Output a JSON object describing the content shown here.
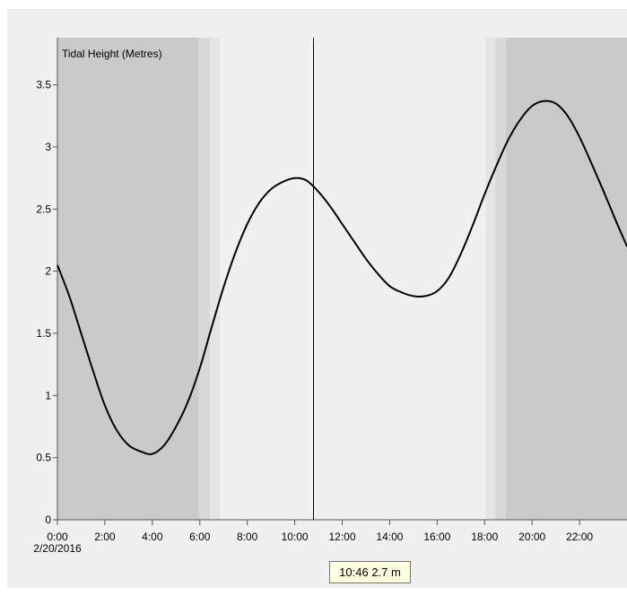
{
  "chart_data": {
    "type": "line",
    "title": "Tidal Height (Metres)",
    "xlabel": "",
    "ylabel": "",
    "date_label": "2/20/2016",
    "xlim": [
      0,
      24
    ],
    "ylim": [
      0,
      3.88
    ],
    "x_ticks": [
      0,
      2,
      4,
      6,
      8,
      10,
      12,
      14,
      16,
      18,
      20,
      22
    ],
    "x_tick_labels": [
      "0:00",
      "2:00",
      "4:00",
      "6:00",
      "8:00",
      "10:00",
      "12:00",
      "14:00",
      "16:00",
      "18:00",
      "20:00",
      "22:00"
    ],
    "y_ticks": [
      0,
      0.5,
      1,
      1.5,
      2,
      2.5,
      3,
      3.5
    ],
    "y_tick_labels": [
      "0",
      "0.5",
      "1",
      "1.5",
      "2",
      "2.5",
      "3",
      "3.5"
    ],
    "grid": false,
    "legend": "none",
    "series": [
      {
        "x": [
          0,
          0.5,
          1,
          1.5,
          2,
          2.5,
          3,
          3.5,
          4,
          4.5,
          5,
          5.5,
          6,
          6.5,
          7,
          7.5,
          8,
          8.5,
          9,
          9.5,
          10,
          10.5,
          11,
          11.5,
          12,
          12.5,
          13,
          13.5,
          14,
          14.5,
          15,
          15.5,
          16,
          16.5,
          17,
          17.5,
          18,
          18.5,
          19,
          19.5,
          20,
          20.5,
          21,
          21.5,
          22,
          22.5,
          23,
          23.5,
          24
        ],
        "values": [
          2.05,
          1.8,
          1.5,
          1.2,
          0.92,
          0.72,
          0.6,
          0.55,
          0.53,
          0.6,
          0.75,
          0.95,
          1.22,
          1.55,
          1.87,
          2.15,
          2.38,
          2.55,
          2.66,
          2.72,
          2.75,
          2.73,
          2.64,
          2.52,
          2.38,
          2.24,
          2.1,
          1.98,
          1.88,
          1.83,
          1.8,
          1.8,
          1.84,
          1.95,
          2.14,
          2.37,
          2.62,
          2.85,
          3.06,
          3.22,
          3.33,
          3.37,
          3.35,
          3.25,
          3.08,
          2.87,
          2.65,
          2.42,
          2.2
        ]
      }
    ],
    "bands": [
      {
        "x0": 0,
        "x1": 5.96,
        "color": "#cacaca"
      },
      {
        "x0": 5.96,
        "x1": 6.43,
        "color": "#d8d8d8"
      },
      {
        "x0": 6.43,
        "x1": 6.85,
        "color": "#e4e4e4"
      },
      {
        "x0": 18.05,
        "x1": 18.45,
        "color": "#e4e4e4"
      },
      {
        "x0": 18.45,
        "x1": 18.9,
        "color": "#d8d8d8"
      },
      {
        "x0": 18.9,
        "x1": 24,
        "color": "#cacaca"
      }
    ],
    "cursor": {
      "x": 10.77,
      "label": "10:46 2.7 m"
    },
    "colors": {
      "outer_background": "#ffffff",
      "panel_background": "#f0f0f0",
      "line": "#000000",
      "cursor_line": "#000000",
      "tooltip_background": "#ffffe1",
      "tooltip_border": "#767676",
      "text": "#000000"
    }
  }
}
